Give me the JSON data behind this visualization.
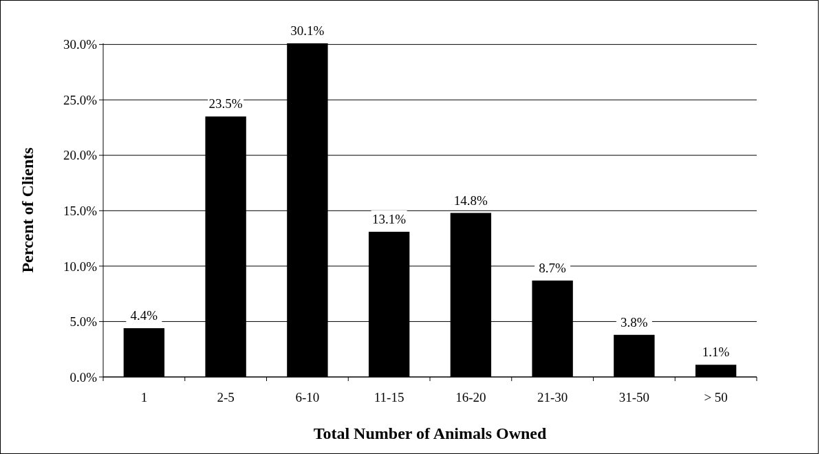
{
  "chart_data": {
    "type": "bar",
    "xlabel": "Total Number of Animals Owned",
    "ylabel": "Percent of Clients",
    "categories": [
      "1",
      "2-5",
      "6-10",
      "11-15",
      "16-20",
      "21-30",
      "31-50",
      "> 50"
    ],
    "values": [
      4.4,
      23.5,
      30.1,
      13.1,
      14.8,
      8.7,
      3.8,
      1.1
    ],
    "value_labels": [
      "4.4%",
      "23.5%",
      "30.1%",
      "13.1%",
      "14.8%",
      "8.7%",
      "3.8%",
      "1.1%"
    ],
    "color": "#000000",
    "ylim": [
      0,
      30.1
    ],
    "yticks": [
      {
        "value": 0,
        "label": "0.0%"
      },
      {
        "value": 5,
        "label": "5.0%"
      },
      {
        "value": 10,
        "label": "10.0%"
      },
      {
        "value": 15,
        "label": "15.0%"
      },
      {
        "value": 20,
        "label": "20.0%"
      },
      {
        "value": 25,
        "label": "25.0%"
      },
      {
        "value": 30,
        "label": "30.0%"
      }
    ],
    "grid": "y"
  }
}
